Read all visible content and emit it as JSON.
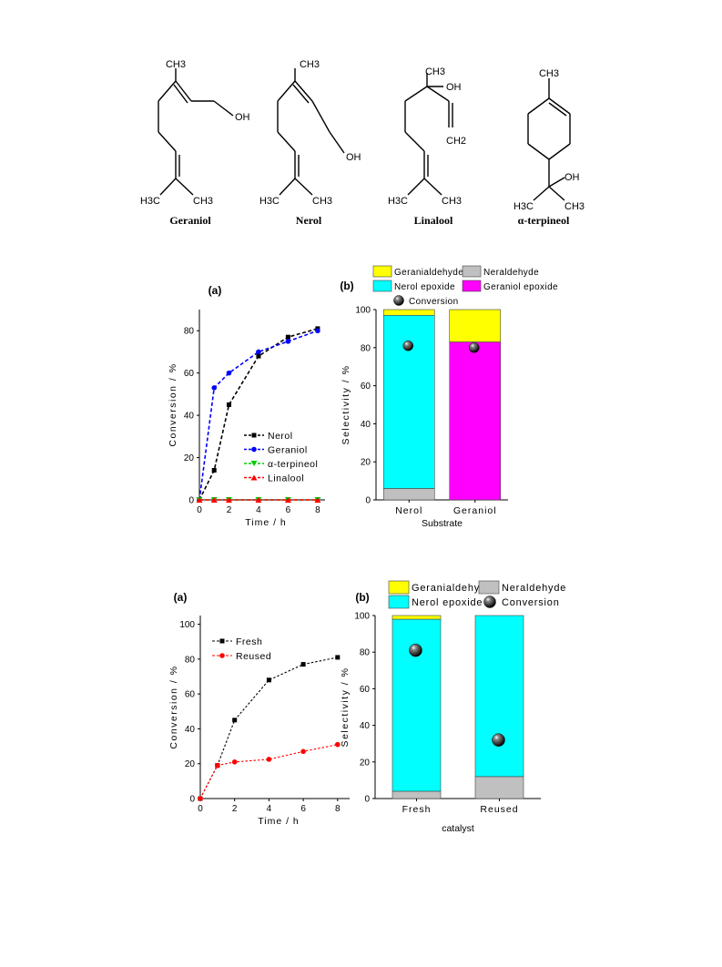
{
  "molecules": [
    {
      "name": "Geraniol",
      "labels": {
        "top": "CH3",
        "oh": "OH",
        "left": "H3C",
        "right": "CH3"
      }
    },
    {
      "name": "Nerol",
      "labels": {
        "top": "CH3",
        "oh": "OH",
        "left": "H3C",
        "right": "CH3"
      }
    },
    {
      "name": "Linalool",
      "labels": {
        "top": "CH3",
        "oh": "OH",
        "ch2": "CH2",
        "left": "H3C",
        "right": "CH3"
      }
    },
    {
      "name": "α-terpineol",
      "labels": {
        "top": "CH3",
        "oh": "OH",
        "left": "H3C",
        "right": "CH3"
      }
    }
  ],
  "colors": {
    "geranialdehyde": "#ffff00",
    "neraldehyde": "#c0c0c0",
    "nerol_epoxide": "#00ffff",
    "geraniol_epoxide": "#ff00ff",
    "nerol": "#000000",
    "geraniol": "#0000ff",
    "terpineol": "#00cc00",
    "linalool": "#ff0000",
    "fresh": "#000000",
    "reused": "#ff0000"
  },
  "chart_data": [
    {
      "panel_label": "(a)",
      "type": "line",
      "xlabel": "Time / h",
      "ylabel": "Conversion / %",
      "xlim": [
        0,
        8.5
      ],
      "ylim": [
        0,
        90
      ],
      "x_ticks": [
        0,
        2,
        4,
        6,
        8
      ],
      "y_ticks": [
        0,
        20,
        40,
        60,
        80
      ],
      "legend_position": "center-right",
      "series": [
        {
          "name": "Nerol",
          "x": [
            0,
            1,
            2,
            4,
            6,
            8
          ],
          "y": [
            0,
            14,
            45,
            68,
            77,
            81
          ],
          "color": "#000000",
          "marker": "square"
        },
        {
          "name": "Geraniol",
          "x": [
            0,
            1,
            2,
            4,
            6,
            8
          ],
          "y": [
            0,
            53,
            60,
            70,
            75,
            80
          ],
          "color": "#0000ff",
          "marker": "circle"
        },
        {
          "name": "α-terpineol",
          "x": [
            0,
            1,
            2,
            4,
            6,
            8
          ],
          "y": [
            0,
            0,
            0,
            0,
            0,
            0
          ],
          "color": "#00cc00",
          "marker": "triangle-down"
        },
        {
          "name": "Linalool",
          "x": [
            0,
            1,
            2,
            4,
            6,
            8
          ],
          "y": [
            0,
            0,
            0,
            0,
            0,
            0
          ],
          "color": "#ff0000",
          "marker": "triangle-up"
        }
      ]
    },
    {
      "panel_label": "(b)",
      "type": "bar",
      "stacked": true,
      "xlabel": "Substrate",
      "ylabel": "Selectivity / %",
      "ylim": [
        0,
        100
      ],
      "y_ticks": [
        0,
        20,
        40,
        60,
        80,
        100
      ],
      "categories": [
        "Nerol",
        "Geraniol"
      ],
      "legend": [
        {
          "name": "Geranialdehyde",
          "color": "#ffff00"
        },
        {
          "name": "Neraldehyde",
          "color": "#c0c0c0"
        },
        {
          "name": "Nerol epoxide",
          "color": "#00ffff"
        },
        {
          "name": "Geraniol epoxide",
          "color": "#ff00ff"
        },
        {
          "name": "Conversion",
          "marker": "sphere"
        }
      ],
      "stacks": [
        [
          {
            "series": "Neraldehyde",
            "value": 6
          },
          {
            "series": "Nerol epoxide",
            "value": 91
          },
          {
            "series": "Geranialdehyde",
            "value": 3
          }
        ],
        [
          {
            "series": "Geraniol epoxide",
            "value": 83
          },
          {
            "series": "Geranialdehyde",
            "value": 17
          }
        ]
      ],
      "conversion": [
        81,
        80
      ]
    },
    {
      "panel_label": "(a)",
      "type": "line",
      "xlabel": "Time / h",
      "ylabel": "Conversion / %",
      "xlim": [
        0,
        8.7
      ],
      "ylim": [
        0,
        105
      ],
      "x_ticks": [
        0,
        2,
        4,
        6,
        8
      ],
      "y_ticks": [
        0,
        20,
        40,
        60,
        80,
        100
      ],
      "legend_position": "top-left",
      "series": [
        {
          "name": "Fresh",
          "x": [
            0,
            1,
            2,
            4,
            6,
            8
          ],
          "y": [
            0,
            19,
            45,
            68,
            77,
            81
          ],
          "color": "#000000",
          "marker": "square"
        },
        {
          "name": "Reused",
          "x": [
            0,
            1,
            2,
            4,
            6,
            8
          ],
          "y": [
            0,
            19,
            21,
            22.5,
            27,
            31
          ],
          "color": "#ff0000",
          "marker": "circle"
        }
      ]
    },
    {
      "panel_label": "(b)",
      "type": "bar",
      "stacked": true,
      "xlabel": "catalyst",
      "ylabel": "Selectivity / %",
      "ylim": [
        0,
        100
      ],
      "y_ticks": [
        0,
        20,
        40,
        60,
        80,
        100
      ],
      "categories": [
        "Fresh",
        "Reused"
      ],
      "legend": [
        {
          "name": "Geranialdehyde",
          "color": "#ffff00"
        },
        {
          "name": "Neraldehyde",
          "color": "#c0c0c0"
        },
        {
          "name": "Nerol epoxide",
          "color": "#00ffff"
        },
        {
          "name": "Conversion",
          "marker": "sphere"
        }
      ],
      "stacks": [
        [
          {
            "series": "Neraldehyde",
            "value": 4
          },
          {
            "series": "Nerol epoxide",
            "value": 94
          },
          {
            "series": "Geranialdehyde",
            "value": 2
          }
        ],
        [
          {
            "series": "Neraldehyde",
            "value": 12
          },
          {
            "series": "Nerol epoxide",
            "value": 88
          }
        ]
      ],
      "conversion": [
        81,
        32
      ]
    }
  ]
}
